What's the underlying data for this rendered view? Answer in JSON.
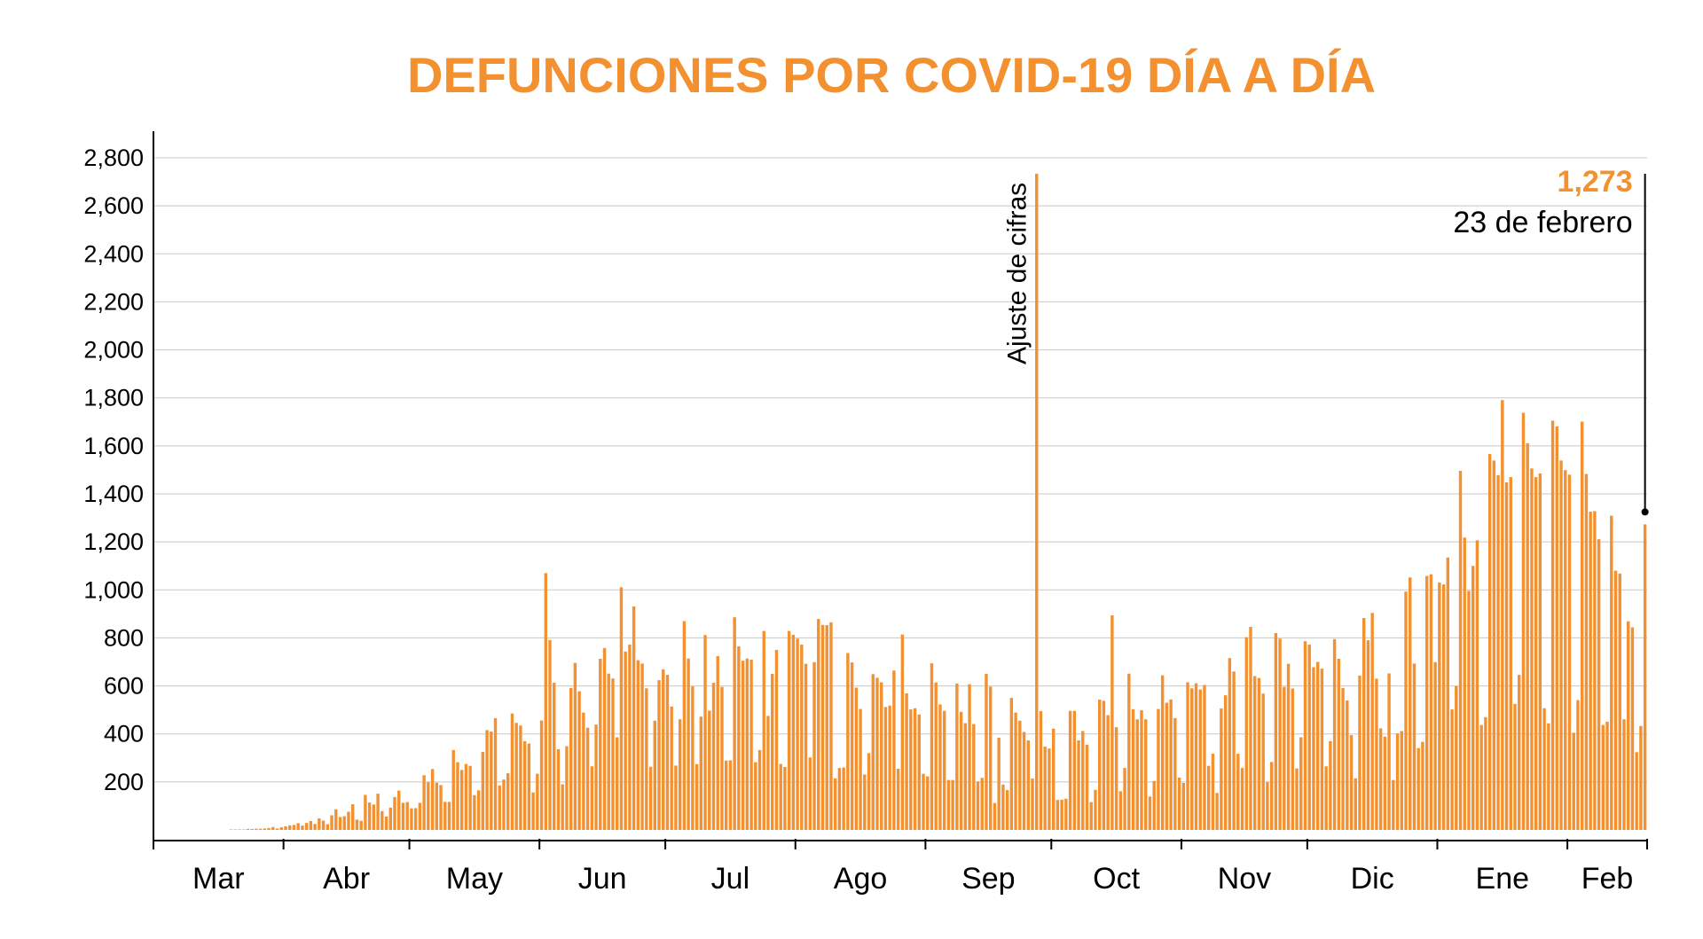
{
  "chart_data": {
    "type": "bar",
    "title": "DEFUNCIONES POR COVID-19 DÍA A DÍA",
    "xlabel": "",
    "ylabel": "",
    "ylim": [
      0,
      2800
    ],
    "yticks": [
      200,
      400,
      600,
      800,
      1000,
      1200,
      1400,
      1600,
      1800,
      2000,
      2200,
      2400,
      2600,
      2800
    ],
    "ytick_labels": [
      "200",
      "400",
      "600",
      "800",
      "1,000",
      "1,200",
      "1,400",
      "1,600",
      "1,800",
      "2,000",
      "2,200",
      "2,400",
      "2,600",
      "2,800"
    ],
    "grid": true,
    "bar_color": "#f39131",
    "x_start": "2020-03-19",
    "x_end": "2021-02-23",
    "months": [
      {
        "label": "Mar",
        "start": "2020-03-01"
      },
      {
        "label": "Abr",
        "start": "2020-04-01"
      },
      {
        "label": "May",
        "start": "2020-05-01"
      },
      {
        "label": "Jun",
        "start": "2020-06-01"
      },
      {
        "label": "Jul",
        "start": "2020-07-01"
      },
      {
        "label": "Ago",
        "start": "2020-08-01"
      },
      {
        "label": "Sep",
        "start": "2020-09-01"
      },
      {
        "label": "Oct",
        "start": "2020-10-01"
      },
      {
        "label": "Nov",
        "start": "2020-11-01"
      },
      {
        "label": "Dic",
        "start": "2020-12-01"
      },
      {
        "label": "Ene",
        "start": "2021-01-01"
      },
      {
        "label": "Feb",
        "start": "2021-02-01"
      }
    ],
    "values": [
      2,
      2,
      2,
      2,
      4,
      4,
      5,
      5,
      6,
      8,
      12,
      6,
      11,
      15,
      19,
      21,
      28,
      18,
      29,
      37,
      25,
      48,
      39,
      24,
      61,
      86,
      54,
      57,
      76,
      107,
      43,
      38,
      146,
      114,
      106,
      151,
      78,
      56,
      93,
      137,
      164,
      113,
      116,
      90,
      91,
      113,
      228,
      199,
      254,
      197,
      187,
      117,
      117,
      333,
      282,
      250,
      275,
      267,
      145,
      165,
      325,
      416,
      410,
      466,
      185,
      210,
      236,
      485,
      446,
      435,
      370,
      360,
      156,
      234,
      456,
      1070,
      791,
      613,
      336,
      190,
      349,
      591,
      696,
      578,
      489,
      426,
      265,
      439,
      713,
      758,
      651,
      631,
      386,
      1011,
      743,
      772,
      931,
      707,
      693,
      590,
      263,
      455,
      624,
      669,
      646,
      514,
      268,
      461,
      870,
      714,
      598,
      274,
      472,
      812,
      497,
      613,
      724,
      596,
      289,
      290,
      886,
      765,
      705,
      714,
      709,
      282,
      333,
      829,
      475,
      650,
      750,
      275,
      262,
      829,
      813,
      797,
      772,
      692,
      302,
      699,
      879,
      854,
      853,
      865,
      215,
      258,
      260,
      737,
      698,
      593,
      504,
      231,
      320,
      649,
      634,
      615,
      512,
      518,
      664,
      255,
      814,
      569,
      502,
      507,
      481,
      234,
      223,
      694,
      614,
      523,
      496,
      208,
      208,
      610,
      492,
      445,
      607,
      441,
      202,
      217,
      650,
      597,
      112,
      384,
      189,
      166,
      550,
      489,
      455,
      408,
      373,
      214,
      2734,
      495,
      347,
      339,
      422,
      125,
      126,
      130,
      496,
      496,
      373,
      412,
      355,
      116,
      167,
      543,
      538,
      478,
      894,
      428,
      161,
      258,
      651,
      503,
      461,
      499,
      461,
      139,
      204,
      504,
      644,
      530,
      544,
      466,
      218,
      196,
      615,
      590,
      611,
      585,
      604,
      267,
      318,
      154,
      506,
      561,
      716,
      660,
      317,
      258,
      803,
      846,
      641,
      633,
      568,
      199,
      283,
      820,
      797,
      596,
      692,
      589,
      256,
      386,
      786,
      772,
      678,
      700,
      672,
      265,
      370,
      795,
      713,
      591,
      539,
      395,
      215,
      643,
      883,
      790,
      904,
      630,
      423,
      389,
      652,
      208,
      402,
      412,
      993,
      1052,
      693,
      341,
      367,
      1058,
      1065,
      699,
      1031,
      1023,
      1135,
      502,
      599,
      1496,
      1218,
      996,
      1100,
      1207,
      437,
      470,
      1566,
      1539,
      1478,
      1791,
      1448,
      1470,
      525,
      646,
      1738,
      1611,
      1506,
      1470,
      1485,
      507,
      444,
      1705,
      1681,
      1539,
      1499,
      1480,
      405,
      541,
      1701,
      1483,
      1326,
      1328,
      1211,
      437,
      451,
      1309,
      1080,
      1068,
      461,
      869,
      844,
      324,
      433,
      1273
    ]
  },
  "annotations": {
    "spike_label": "Ajuste de cifras",
    "last_value_label": "1,273",
    "last_date_label": "23 de febrero"
  }
}
